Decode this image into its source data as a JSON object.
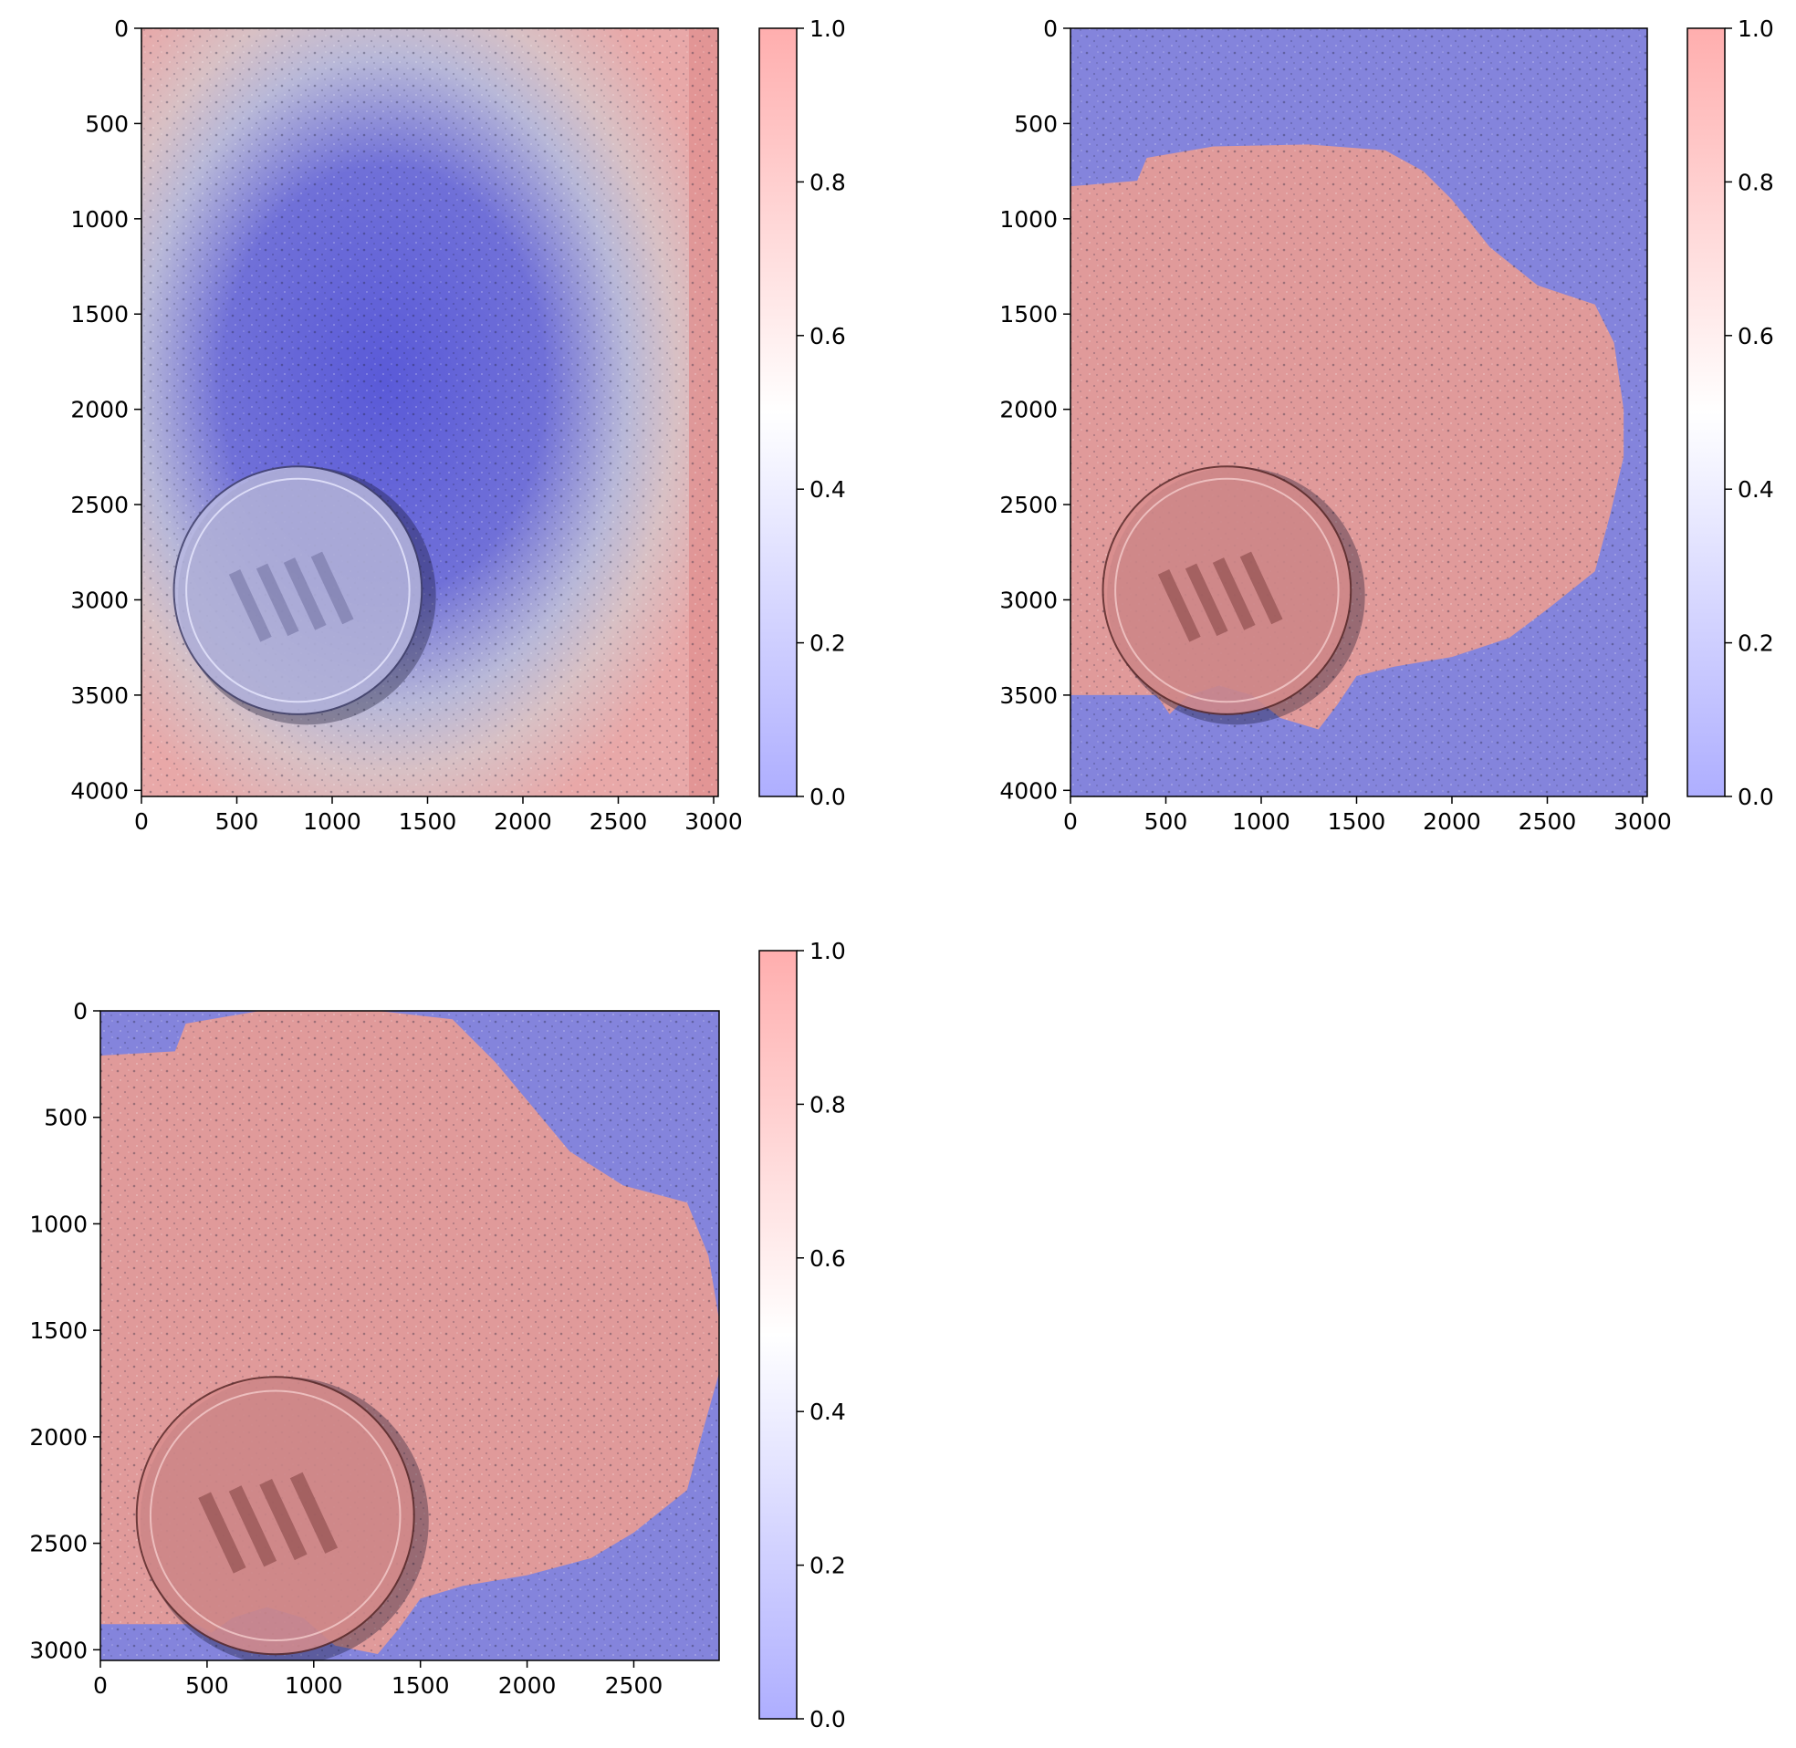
{
  "chart_data": [
    {
      "type": "heatmap",
      "panel": "top-left",
      "description_of_overlay": "smooth probability map",
      "colormap": "bwr",
      "colormap_range": [
        0.0,
        1.0
      ],
      "colors": {
        "low": "#0000ff",
        "mid": "#ffffff",
        "high": "#ff0000"
      },
      "xlim": [
        0,
        3024
      ],
      "ylim": [
        4032,
        0
      ],
      "xticks": [
        "0",
        "500",
        "1000",
        "1500",
        "2000",
        "2500",
        "3000"
      ],
      "xtick_values": [
        0,
        500,
        1000,
        1500,
        2000,
        2500,
        3000
      ],
      "yticks": [
        "0",
        "500",
        "1000",
        "1500",
        "2000",
        "2500",
        "3000",
        "3500",
        "4000"
      ],
      "ytick_values": [
        0,
        500,
        1000,
        1500,
        2000,
        2500,
        3000,
        3500,
        4000
      ],
      "colorbar_ticks": [
        "0.0",
        "0.2",
        "0.4",
        "0.6",
        "0.8",
        "1.0"
      ],
      "colorbar_values": [
        0.0,
        0.2,
        0.4,
        0.6,
        0.8,
        1.0
      ],
      "coin": {
        "cx": 820,
        "cy": 2950,
        "r": 650
      }
    },
    {
      "type": "heatmap",
      "panel": "top-right",
      "description_of_overlay": "binary segmentation mask",
      "colormap": "bwr",
      "colormap_range": [
        0.0,
        1.0
      ],
      "colors": {
        "low": "#0000ff",
        "mid": "#ffffff",
        "high": "#ff0000"
      },
      "xlim": [
        0,
        3024
      ],
      "ylim": [
        4032,
        0
      ],
      "xticks": [
        "0",
        "500",
        "1000",
        "1500",
        "2000",
        "2500",
        "3000"
      ],
      "xtick_values": [
        0,
        500,
        1000,
        1500,
        2000,
        2500,
        3000
      ],
      "yticks": [
        "0",
        "500",
        "1000",
        "1500",
        "2000",
        "2500",
        "3000",
        "3500",
        "4000"
      ],
      "ytick_values": [
        0,
        500,
        1000,
        1500,
        2000,
        2500,
        3000,
        3500,
        4000
      ],
      "colorbar_ticks": [
        "0.0",
        "0.2",
        "0.4",
        "0.6",
        "0.8",
        "1.0"
      ],
      "colorbar_values": [
        0.0,
        0.2,
        0.4,
        0.6,
        0.8,
        1.0
      ],
      "coin": {
        "cx": 820,
        "cy": 2950,
        "r": 650
      },
      "mask_outline": [
        [
          0,
          830
        ],
        [
          350,
          800
        ],
        [
          400,
          680
        ],
        [
          750,
          620
        ],
        [
          1250,
          610
        ],
        [
          1650,
          640
        ],
        [
          1850,
          750
        ],
        [
          2000,
          900
        ],
        [
          2200,
          1150
        ],
        [
          2450,
          1350
        ],
        [
          2750,
          1450
        ],
        [
          2850,
          1650
        ],
        [
          2900,
          2000
        ],
        [
          2900,
          2250
        ],
        [
          2830,
          2550
        ],
        [
          2750,
          2850
        ],
        [
          2500,
          3050
        ],
        [
          2300,
          3200
        ],
        [
          2000,
          3300
        ],
        [
          1700,
          3350
        ],
        [
          1500,
          3400
        ],
        [
          1400,
          3550
        ],
        [
          1300,
          3680
        ],
        [
          1100,
          3620
        ],
        [
          950,
          3500
        ],
        [
          780,
          3450
        ],
        [
          620,
          3500
        ],
        [
          520,
          3600
        ],
        [
          450,
          3500
        ],
        [
          0,
          3500
        ]
      ]
    },
    {
      "type": "heatmap",
      "panel": "bottom-left",
      "description_of_overlay": "cropped binary segmentation mask",
      "colormap": "bwr",
      "colormap_range": [
        0.0,
        1.0
      ],
      "colors": {
        "low": "#0000ff",
        "mid": "#ffffff",
        "high": "#ff0000"
      },
      "xlim": [
        0,
        2900
      ],
      "ylim": [
        3050,
        0
      ],
      "xticks": [
        "0",
        "500",
        "1000",
        "1500",
        "2000",
        "2500"
      ],
      "xtick_values": [
        0,
        500,
        1000,
        1500,
        2000,
        2500
      ],
      "yticks": [
        "0",
        "500",
        "1000",
        "1500",
        "2000",
        "2500",
        "3000"
      ],
      "ytick_values": [
        0,
        500,
        1000,
        1500,
        2000,
        2500,
        3000
      ],
      "colorbar_ticks": [
        "0.0",
        "0.2",
        "0.4",
        "0.6",
        "0.8",
        "1.0"
      ],
      "colorbar_values": [
        0.0,
        0.2,
        0.4,
        0.6,
        0.8,
        1.0
      ],
      "coin": {
        "cx": 820,
        "cy": 2370,
        "r": 650
      },
      "mask_outline": [
        [
          0,
          210
        ],
        [
          350,
          190
        ],
        [
          400,
          60
        ],
        [
          750,
          0
        ],
        [
          1300,
          0
        ],
        [
          1650,
          40
        ],
        [
          1850,
          240
        ],
        [
          2000,
          420
        ],
        [
          2200,
          660
        ],
        [
          2450,
          820
        ],
        [
          2750,
          900
        ],
        [
          2850,
          1150
        ],
        [
          2900,
          1450
        ],
        [
          2900,
          1700
        ],
        [
          2830,
          1950
        ],
        [
          2750,
          2250
        ],
        [
          2500,
          2450
        ],
        [
          2300,
          2570
        ],
        [
          2000,
          2650
        ],
        [
          1700,
          2700
        ],
        [
          1500,
          2760
        ],
        [
          1400,
          2900
        ],
        [
          1300,
          3020
        ],
        [
          1100,
          2980
        ],
        [
          950,
          2850
        ],
        [
          780,
          2800
        ],
        [
          620,
          2850
        ],
        [
          520,
          2920
        ],
        [
          450,
          2880
        ],
        [
          0,
          2880
        ]
      ]
    }
  ]
}
